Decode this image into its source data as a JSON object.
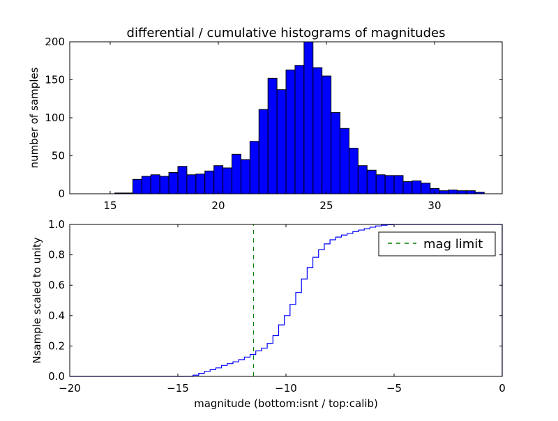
{
  "chart_data": [
    {
      "type": "bar",
      "title": "differential / cumulative histograms of magnitudes",
      "xlabel": "",
      "ylabel": "number of samples",
      "xlim": [
        13.13,
        33.13
      ],
      "ylim": [
        0,
        200
      ],
      "bin_start": 13.13,
      "bin_width": 0.4167,
      "values": [
        0,
        0,
        0,
        0,
        0,
        1,
        1,
        19,
        23,
        25,
        23,
        28,
        36,
        25,
        26,
        30,
        37,
        34,
        52,
        45,
        69,
        111,
        152,
        137,
        163,
        169,
        200,
        166,
        155,
        107,
        86,
        60,
        37,
        31,
        25,
        24,
        24,
        16,
        17,
        14,
        7,
        4,
        5,
        4,
        4,
        2,
        0,
        0
      ],
      "bar_color": "#0000ff",
      "xticks": [
        "15",
        "20",
        "25",
        "30"
      ],
      "xtick_values": [
        15,
        20,
        25,
        30
      ],
      "yticks": [
        "0",
        "50",
        "100",
        "150",
        "200"
      ],
      "ytick_values": [
        0,
        50,
        100,
        150,
        200
      ],
      "grid": false
    },
    {
      "type": "line",
      "subtype": "cumulative-step",
      "xlabel": "magnitude (bottom:isnt / top:calib)",
      "ylabel": "Nsample scaled to unity",
      "xlim": [
        -20,
        0
      ],
      "ylim": [
        0,
        1
      ],
      "step_start": -14.3,
      "step_width": 0.264,
      "values": [
        0.008,
        0.02,
        0.033,
        0.044,
        0.056,
        0.072,
        0.084,
        0.096,
        0.11,
        0.127,
        0.144,
        0.168,
        0.186,
        0.217,
        0.268,
        0.339,
        0.4,
        0.474,
        0.552,
        0.641,
        0.716,
        0.784,
        0.833,
        0.872,
        0.899,
        0.917,
        0.93,
        0.94,
        0.953,
        0.963,
        0.972,
        0.982,
        0.99,
        0.995,
        0.998,
        1.0
      ],
      "line_color": "#0000ff",
      "mag_limit": -11.5,
      "mag_limit_color": "#008000",
      "legend": [
        "mag limit"
      ],
      "legend_placement": "top-right",
      "xticks": [
        "−20",
        "−15",
        "−10",
        "−5",
        "0"
      ],
      "xtick_values": [
        -20,
        -15,
        -10,
        -5,
        0
      ],
      "yticks": [
        "0.0",
        "0.2",
        "0.4",
        "0.6",
        "0.8",
        "1.0"
      ],
      "ytick_values": [
        0,
        0.2,
        0.4,
        0.6,
        0.8,
        1.0
      ],
      "grid": false
    }
  ]
}
